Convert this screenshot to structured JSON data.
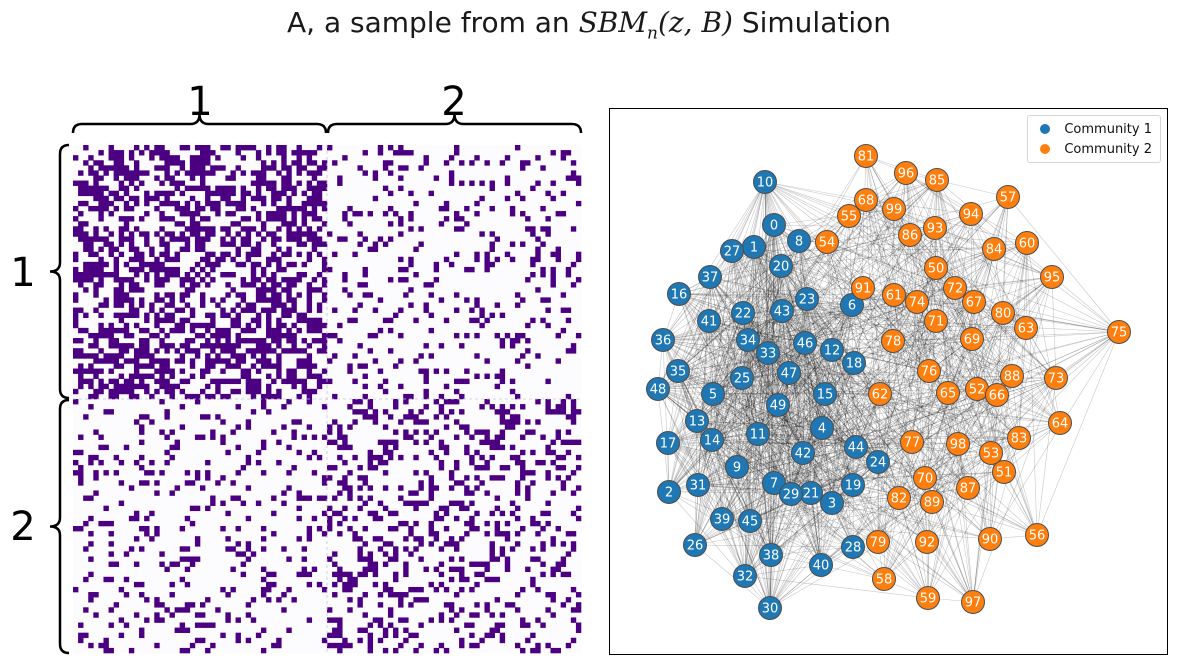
{
  "title": {
    "prefix": "A, a sample from an ",
    "math_main": "SBM",
    "math_sub": "n",
    "math_args": "(z, B)",
    "suffix": " Simulation"
  },
  "colors": {
    "edge_present": "#4b0082",
    "edge_absent": "#fcfbfd",
    "community_1": "#1f77b4",
    "community_2": "#ff7f0e",
    "node_border": "#4d4d4d",
    "graph_edge": "#000000"
  },
  "chart_data": [
    {
      "type": "heatmap",
      "title": "",
      "matrix_size": 100,
      "colormap": "Purples",
      "block_labels": [
        "1",
        "2"
      ],
      "block_boundaries": [
        0,
        50,
        100
      ],
      "block_edge_probabilities": [
        [
          0.5,
          0.15
        ],
        [
          0.15,
          0.25
        ]
      ],
      "note_source": "each cell is an adjacency entry A_ij (1 = dark, 0 = white)"
    },
    {
      "type": "scatter",
      "subtype": "network",
      "legend": [
        {
          "label": "Community 1",
          "color": "#1f77b4"
        },
        {
          "label": "Community 2",
          "color": "#ff7f0e"
        }
      ],
      "legend_position": "top-right",
      "node_ids": [
        0,
        1,
        2,
        3,
        4,
        5,
        6,
        7,
        8,
        9,
        10,
        11,
        12,
        13,
        14,
        15,
        16,
        17,
        18,
        19,
        20,
        21,
        22,
        23,
        24,
        25,
        26,
        27,
        28,
        29,
        30,
        31,
        32,
        33,
        34,
        35,
        36,
        37,
        38,
        39,
        40,
        41,
        42,
        43,
        44,
        45,
        46,
        47,
        48,
        49,
        50,
        51,
        52,
        53,
        54,
        55,
        56,
        57,
        58,
        59,
        60,
        61,
        62,
        63,
        64,
        65,
        66,
        67,
        68,
        69,
        70,
        71,
        72,
        73,
        74,
        75,
        76,
        77,
        78,
        79,
        80,
        81,
        82,
        83,
        84,
        85,
        86,
        87,
        88,
        89,
        90,
        91,
        92,
        93,
        94,
        95,
        96,
        97,
        98,
        99
      ]
    }
  ]
}
